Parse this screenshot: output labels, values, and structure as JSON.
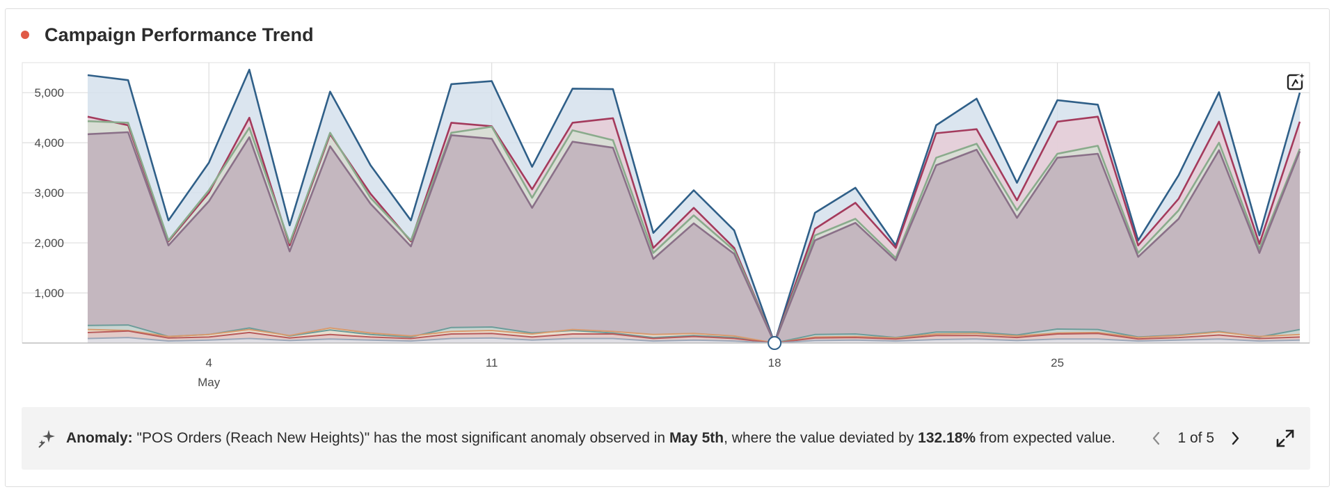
{
  "card": {
    "title": "Campaign Performance Trend",
    "status_color": "#e05a47"
  },
  "insight": {
    "label": "Anomaly:",
    "text_1": " \"POS Orders (Reach New Heights)\" has the most significant anomaly observed in ",
    "date": "May 5th",
    "text_2": ", where the value deviated by ",
    "percent": "132.18%",
    "text_3": " from expected value.",
    "pager": "1 of 5",
    "icon": "sparkle-icon"
  },
  "chart_data": {
    "type": "area",
    "x": [
      "May 1",
      "May 2",
      "May 3",
      "May 4",
      "May 5",
      "May 6",
      "May 7",
      "May 8",
      "May 9",
      "May 10",
      "May 11",
      "May 12",
      "May 13",
      "May 14",
      "May 15",
      "May 16",
      "May 17",
      "May 18",
      "May 19",
      "May 20",
      "May 21",
      "May 22",
      "May 23",
      "May 24",
      "May 25",
      "May 26",
      "May 27",
      "May 28",
      "May 29",
      "May 30",
      "May 31"
    ],
    "x_tick_labels": [
      {
        "x": "May 4",
        "label": "4",
        "sub": "May"
      },
      {
        "x": "May 11",
        "label": "11"
      },
      {
        "x": "May 18",
        "label": "18"
      },
      {
        "x": "May 25",
        "label": "25"
      }
    ],
    "ylim": [
      0,
      5600
    ],
    "y_ticks": [
      1000,
      2000,
      3000,
      4000,
      5000
    ],
    "y_tick_labels": [
      "1,000",
      "2,000",
      "3,000",
      "4,000",
      "5,000"
    ],
    "grid": true,
    "highlight_point": {
      "x": "May 18",
      "y": 0
    },
    "series": [
      {
        "color": "#2f5f88",
        "fill": "#d5e1ec",
        "values": [
          5350,
          5250,
          2450,
          3600,
          5460,
          2350,
          5020,
          3550,
          2450,
          5170,
          5230,
          3520,
          5080,
          5070,
          2200,
          3050,
          2250,
          0,
          2600,
          3100,
          1950,
          4350,
          4880,
          3200,
          4850,
          4760,
          2050,
          3350,
          5010,
          2150,
          5000
        ]
      },
      {
        "color": "#a43a5c",
        "fill": "#e6ccd6",
        "values": [
          4520,
          4350,
          2030,
          3000,
          4500,
          1950,
          4170,
          2980,
          2030,
          4400,
          4330,
          3070,
          4400,
          4490,
          1900,
          2700,
          1900,
          0,
          2280,
          2800,
          1900,
          4190,
          4270,
          2850,
          4420,
          4520,
          1950,
          2880,
          4420,
          1980,
          4420
        ]
      },
      {
        "color": "#8aab8c",
        "fill": "#d7dfd3",
        "values": [
          4430,
          4400,
          2050,
          3050,
          4300,
          2000,
          4200,
          2900,
          2050,
          4200,
          4320,
          2900,
          4250,
          4050,
          1800,
          2550,
          1850,
          0,
          2150,
          2480,
          1700,
          3700,
          3980,
          2650,
          3780,
          3940,
          1800,
          2650,
          4000,
          1880,
          3880
        ]
      },
      {
        "color": "#8a7088",
        "fill": "#bfb0bb",
        "values": [
          4170,
          4210,
          1950,
          2830,
          4110,
          1830,
          3930,
          2780,
          1930,
          4150,
          4080,
          2700,
          4020,
          3900,
          1680,
          2390,
          1780,
          0,
          2050,
          2400,
          1650,
          3550,
          3860,
          2500,
          3700,
          3780,
          1720,
          2480,
          3850,
          1800,
          3830
        ]
      },
      {
        "color": "#6c9c9a",
        "fill": "#c9d9d4",
        "values": [
          350,
          360,
          130,
          170,
          300,
          140,
          260,
          170,
          120,
          310,
          320,
          200,
          250,
          200,
          110,
          150,
          110,
          0,
          170,
          180,
          110,
          220,
          220,
          160,
          280,
          270,
          120,
          160,
          230,
          120,
          270
        ]
      },
      {
        "color": "#d79a6e",
        "fill": "#efe0cf",
        "values": [
          270,
          250,
          130,
          170,
          270,
          150,
          300,
          200,
          140,
          230,
          250,
          180,
          270,
          230,
          170,
          190,
          140,
          0,
          120,
          130,
          100,
          180,
          190,
          140,
          200,
          210,
          110,
          150,
          220,
          130,
          170
        ]
      },
      {
        "color": "#b85a5a",
        "fill": "#e2c7c5",
        "values": [
          210,
          240,
          100,
          120,
          210,
          100,
          170,
          120,
          90,
          180,
          190,
          120,
          180,
          180,
          90,
          130,
          90,
          0,
          100,
          110,
          80,
          150,
          150,
          110,
          180,
          190,
          80,
          110,
          160,
          90,
          120
        ]
      },
      {
        "color": "#9aa6b8",
        "fill": "#dfe3ea",
        "values": [
          90,
          110,
          40,
          60,
          90,
          50,
          80,
          60,
          40,
          90,
          100,
          60,
          90,
          90,
          40,
          60,
          40,
          0,
          50,
          60,
          40,
          70,
          80,
          50,
          80,
          80,
          40,
          60,
          80,
          40,
          60
        ]
      }
    ]
  }
}
